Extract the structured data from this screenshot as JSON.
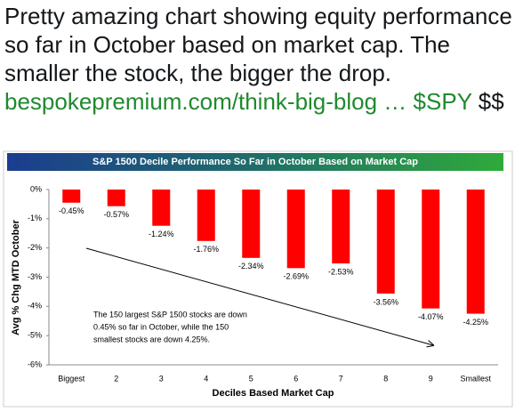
{
  "tweet": {
    "parts": [
      "Pretty amazing chart showing equity performance so far in October based on market cap.  The smaller the stock, the bigger the drop.  ",
      "bespokepremium.com/think-big-blog …",
      "$SPY",
      " $$"
    ]
  },
  "chart_data": {
    "type": "bar",
    "title": "S&P 1500 Decile Performance So Far in October Based on Market Cap",
    "x_label": "Deciles Based Market Cap",
    "y_label": "Avg % Chg MTD October",
    "categories": [
      "Biggest",
      "2",
      "3",
      "4",
      "5",
      "6",
      "7",
      "8",
      "9",
      "Smallest"
    ],
    "values": [
      -0.45,
      -0.57,
      -1.24,
      -1.76,
      -2.34,
      -2.69,
      -2.53,
      -3.56,
      -4.07,
      -4.25
    ],
    "value_labels": [
      "-0.45%",
      "-0.57%",
      "-1.24%",
      "-1.76%",
      "-2.34%",
      "-2.69%",
      "-2.53%",
      "-3.56%",
      "-4.07%",
      "-4.25%"
    ],
    "color": "#ff0000",
    "ylim": [
      -6,
      0
    ],
    "yticks": [
      {
        "value": 0,
        "label": "0%"
      },
      {
        "value": -1,
        "label": "-1%"
      },
      {
        "value": -2,
        "label": "-2%"
      },
      {
        "value": -3,
        "label": "-3%"
      },
      {
        "value": -4,
        "label": "-4%"
      },
      {
        "value": -5,
        "label": "-5%"
      },
      {
        "value": -6,
        "label": "-6%"
      }
    ],
    "annotation": [
      "The 150 largest S&P 1500 stocks are down",
      "0.45% so far in October, while the 150",
      "smallest stocks are down 4.25%."
    ]
  }
}
